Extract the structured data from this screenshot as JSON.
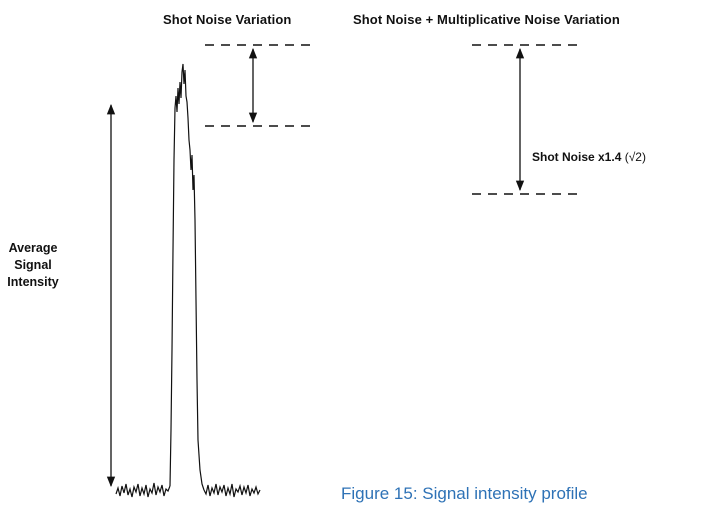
{
  "labels": {
    "shot_noise_variation": "Shot Noise Variation",
    "combined_variation": "Shot Noise + Multiplicative Noise Variation",
    "shot_noise_x14_prefix": "Shot Noise x1.4",
    "shot_noise_x14_sqrt": "(√2)",
    "avg_signal_line1": "Average",
    "avg_signal_line2": "Signal",
    "avg_signal_line3": "Intensity",
    "figure_caption": "Figure 15: Signal intensity profile"
  },
  "colors": {
    "line": "#111111",
    "caption": "#2e72b6",
    "background": "#ffffff"
  }
}
